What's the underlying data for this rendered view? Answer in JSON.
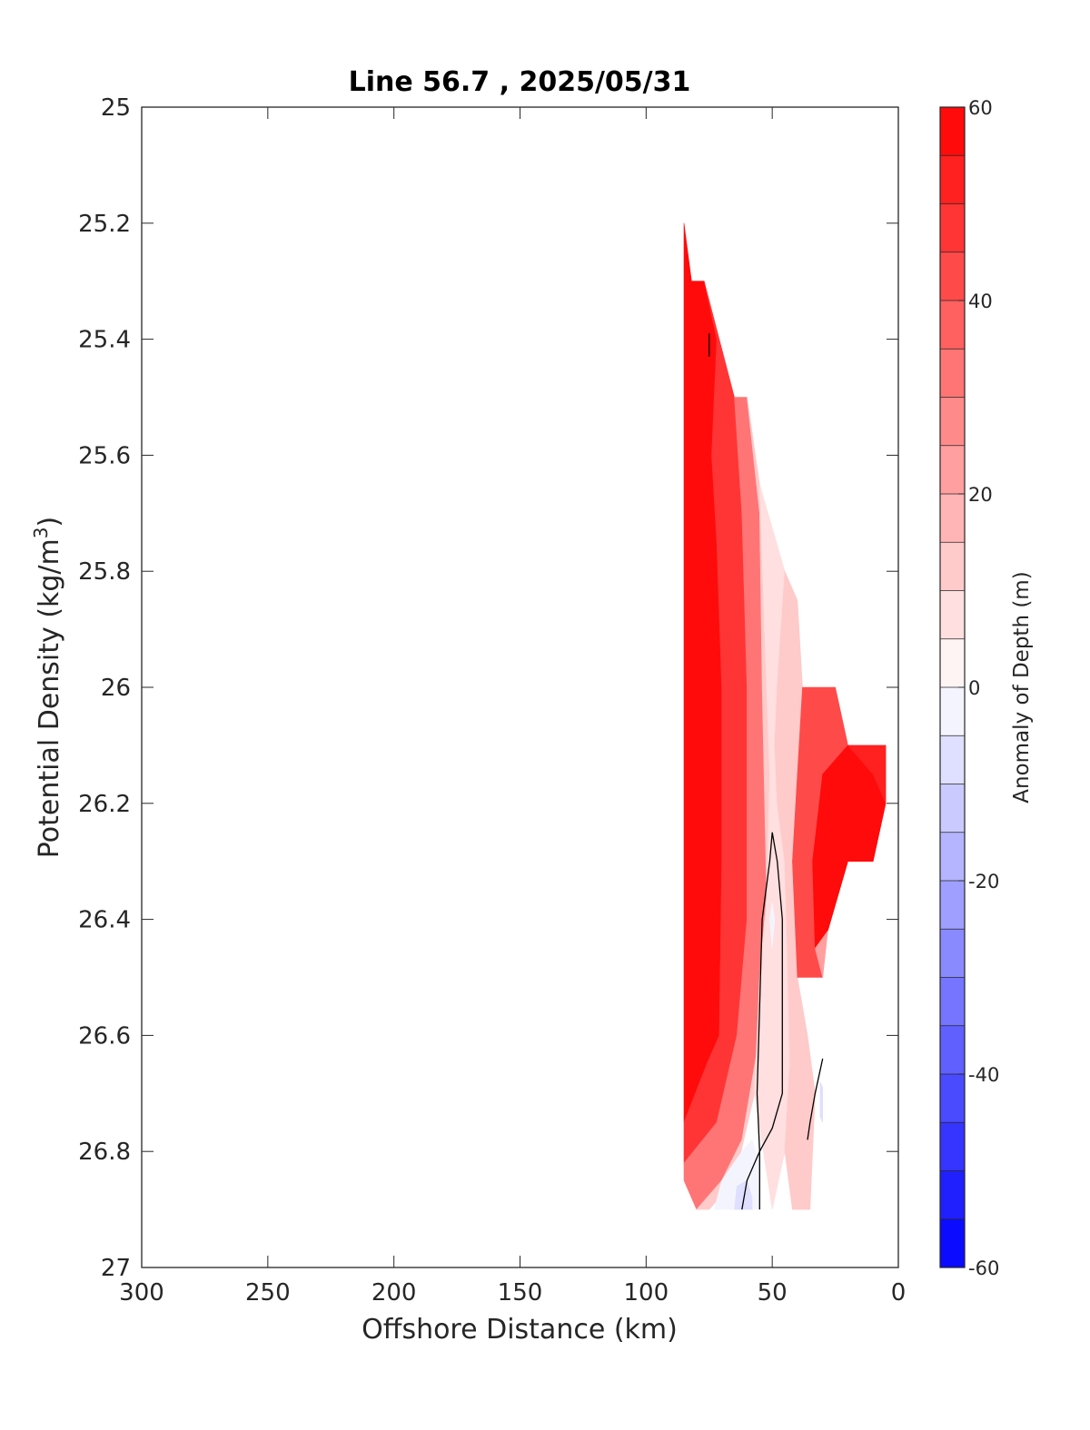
{
  "chart_data": {
    "type": "heatmap",
    "title": "Line 56.7 , 2025/05/31",
    "xlabel": "Offshore Distance (km)",
    "ylabel_main": "Potential Density (kg/m",
    "ylabel_sup": "3",
    "ylabel_close": ")",
    "xlim": [
      0,
      300
    ],
    "x_reversed": true,
    "ylim": [
      25,
      27
    ],
    "y_reversed": true,
    "x_ticks": [
      300,
      250,
      200,
      150,
      100,
      50,
      0
    ],
    "x_tick_labels": [
      "300",
      "250",
      "200",
      "150",
      "100",
      "50",
      "0"
    ],
    "y_ticks": [
      25,
      25.2,
      25.4,
      25.6,
      25.8,
      26,
      26.2,
      26.4,
      26.6,
      26.8,
      27
    ],
    "y_tick_labels": [
      "25",
      "25.2",
      "25.4",
      "25.6",
      "25.8",
      "26",
      "26.2",
      "26.4",
      "26.6",
      "26.8",
      "27"
    ],
    "colorbar": {
      "label": "Anomaly of Depth (m)",
      "range": [
        -60,
        60
      ],
      "levels": 24,
      "ticks": [
        60,
        40,
        20,
        0,
        -20,
        -40,
        -60
      ],
      "tick_labels": [
        "60",
        "40",
        "20",
        "0",
        "-20",
        "-40",
        "-60"
      ],
      "low_color": "#0000ff",
      "mid_color": "#ffffff",
      "high_color": "#ff0000"
    },
    "grid": false,
    "contour_color": "#000000",
    "data_extent_outline": [
      [
        85,
        25.2
      ],
      [
        82,
        25.3
      ],
      [
        77,
        25.3
      ],
      [
        65,
        25.5
      ],
      [
        60,
        25.5
      ],
      [
        35,
        26.0
      ],
      [
        25,
        26.0
      ],
      [
        20,
        26.1
      ],
      [
        5,
        26.1
      ],
      [
        5,
        26.2
      ],
      [
        10,
        26.3
      ],
      [
        20,
        26.3
      ],
      [
        30,
        26.5
      ],
      [
        30,
        26.7
      ],
      [
        37,
        26.9
      ],
      [
        80,
        26.9
      ],
      [
        85,
        26.8
      ]
    ],
    "regions": [
      {
        "anomaly": 60,
        "polygon": [
          [
            85,
            25.2
          ],
          [
            82,
            25.3
          ],
          [
            77,
            25.3
          ],
          [
            72,
            25.4
          ],
          [
            74,
            25.6
          ],
          [
            72,
            25.75
          ],
          [
            70,
            26.0
          ],
          [
            70,
            26.3
          ],
          [
            71,
            26.6
          ],
          [
            76,
            26.65
          ],
          [
            80,
            26.7
          ],
          [
            85,
            26.75
          ]
        ]
      },
      {
        "anomaly": 45,
        "polygon": [
          [
            77,
            25.3
          ],
          [
            65,
            25.5
          ],
          [
            62,
            25.7
          ],
          [
            60,
            26.0
          ],
          [
            60,
            26.4
          ],
          [
            64,
            26.6
          ],
          [
            72,
            26.75
          ],
          [
            85,
            26.82
          ],
          [
            85,
            26.75
          ],
          [
            76,
            26.65
          ],
          [
            71,
            26.6
          ],
          [
            70,
            26.3
          ],
          [
            70,
            26.0
          ],
          [
            72,
            25.75
          ],
          [
            74,
            25.6
          ],
          [
            72,
            25.4
          ]
        ]
      },
      {
        "anomaly": 30,
        "polygon": [
          [
            65,
            25.5
          ],
          [
            60,
            25.5
          ],
          [
            55,
            25.7
          ],
          [
            54,
            26.0
          ],
          [
            52,
            26.4
          ],
          [
            55,
            26.6
          ],
          [
            62,
            26.78
          ],
          [
            70,
            26.85
          ],
          [
            80,
            26.9
          ],
          [
            85,
            26.85
          ],
          [
            85,
            26.82
          ],
          [
            72,
            26.75
          ],
          [
            64,
            26.6
          ],
          [
            60,
            26.4
          ],
          [
            60,
            26.0
          ],
          [
            62,
            25.7
          ]
        ]
      },
      {
        "anomaly": 12,
        "polygon": [
          [
            60,
            25.5
          ],
          [
            55,
            25.65
          ],
          [
            53,
            25.9
          ],
          [
            51,
            26.15
          ],
          [
            52,
            26.35
          ],
          [
            55,
            26.5
          ],
          [
            57,
            26.7
          ],
          [
            65,
            26.85
          ],
          [
            75,
            26.9
          ],
          [
            80,
            26.9
          ],
          [
            70,
            26.85
          ],
          [
            62,
            26.78
          ],
          [
            55,
            26.6
          ],
          [
            52,
            26.4
          ],
          [
            54,
            26.0
          ],
          [
            55,
            25.7
          ]
        ]
      },
      {
        "anomaly": 6,
        "polygon": [
          [
            55,
            25.65
          ],
          [
            45,
            25.8
          ],
          [
            48,
            26.0
          ],
          [
            49,
            26.1
          ],
          [
            48,
            26.2
          ],
          [
            45,
            26.3
          ],
          [
            44,
            26.45
          ],
          [
            43,
            26.65
          ],
          [
            45,
            26.8
          ],
          [
            50,
            26.9
          ],
          [
            57,
            26.7
          ],
          [
            55,
            26.5
          ],
          [
            52,
            26.35
          ],
          [
            51,
            26.15
          ],
          [
            53,
            25.9
          ]
        ]
      },
      {
        "anomaly": 14,
        "polygon": [
          [
            45,
            25.8
          ],
          [
            40,
            25.85
          ],
          [
            38,
            26.0
          ],
          [
            40,
            26.15
          ],
          [
            42,
            26.3
          ],
          [
            40,
            26.5
          ],
          [
            36,
            26.6
          ],
          [
            33,
            26.7
          ],
          [
            35,
            26.9
          ],
          [
            42,
            26.9
          ],
          [
            45,
            26.8
          ],
          [
            43,
            26.65
          ],
          [
            44,
            26.45
          ],
          [
            45,
            26.3
          ],
          [
            48,
            26.2
          ],
          [
            49,
            26.1
          ],
          [
            48,
            26.0
          ]
        ]
      },
      {
        "anomaly": 40,
        "polygon": [
          [
            35,
            26.0
          ],
          [
            25,
            26.0
          ],
          [
            20,
            26.1
          ],
          [
            30,
            26.15
          ],
          [
            34,
            26.3
          ],
          [
            33,
            26.45
          ],
          [
            30,
            26.5
          ],
          [
            40,
            26.5
          ],
          [
            42,
            26.3
          ],
          [
            40,
            26.15
          ],
          [
            38,
            26.0
          ]
        ]
      },
      {
        "anomaly": 60,
        "polygon": [
          [
            20,
            26.1
          ],
          [
            10,
            26.15
          ],
          [
            5,
            26.2
          ],
          [
            10,
            26.3
          ],
          [
            20,
            26.3
          ],
          [
            28,
            26.42
          ],
          [
            33,
            26.45
          ],
          [
            34,
            26.3
          ],
          [
            30,
            26.15
          ]
        ]
      },
      {
        "anomaly": 50,
        "polygon": [
          [
            20,
            26.1
          ],
          [
            5,
            26.1
          ],
          [
            5,
            26.2
          ],
          [
            10,
            26.15
          ]
        ]
      },
      {
        "anomaly": 20,
        "polygon": [
          [
            30,
            26.5
          ],
          [
            33,
            26.45
          ],
          [
            28,
            26.42
          ],
          [
            30,
            26.5
          ]
        ]
      },
      {
        "anomaly": -5,
        "polygon": [
          [
            62,
            26.8
          ],
          [
            58,
            26.78
          ],
          [
            55,
            26.82
          ],
          [
            55,
            26.9
          ],
          [
            73,
            26.9
          ],
          [
            70,
            26.85
          ]
        ]
      },
      {
        "anomaly": -10,
        "polygon": [
          [
            64,
            26.86
          ],
          [
            60,
            26.85
          ],
          [
            58,
            26.88
          ],
          [
            58,
            26.9
          ],
          [
            65,
            26.9
          ]
        ]
      },
      {
        "anomaly": -8,
        "polygon": [
          [
            31,
            26.68
          ],
          [
            30,
            26.69
          ],
          [
            30,
            26.75
          ],
          [
            31,
            26.74
          ]
        ]
      },
      {
        "anomaly": -4,
        "polygon": [
          [
            50,
            26.37
          ],
          [
            49,
            26.4
          ],
          [
            50,
            26.45
          ],
          [
            51,
            26.4
          ]
        ]
      }
    ],
    "contours_zero": [
      [
        [
          50,
          26.25
        ],
        [
          48,
          26.3
        ],
        [
          46,
          26.4
        ],
        [
          46,
          26.6
        ],
        [
          46,
          26.7
        ],
        [
          50,
          26.76
        ],
        [
          55,
          26.8
        ],
        [
          60,
          26.85
        ],
        [
          62,
          26.9
        ]
      ],
      [
        [
          50,
          26.25
        ],
        [
          51,
          26.3
        ],
        [
          54,
          26.4
        ],
        [
          55,
          26.55
        ],
        [
          56,
          26.7
        ],
        [
          55,
          26.8
        ],
        [
          55,
          26.9
        ]
      ],
      [
        [
          30,
          26.64
        ],
        [
          33,
          26.7
        ],
        [
          35,
          26.75
        ],
        [
          36,
          26.78
        ]
      ],
      [
        [
          75,
          25.39
        ],
        [
          75,
          25.43
        ]
      ]
    ]
  }
}
